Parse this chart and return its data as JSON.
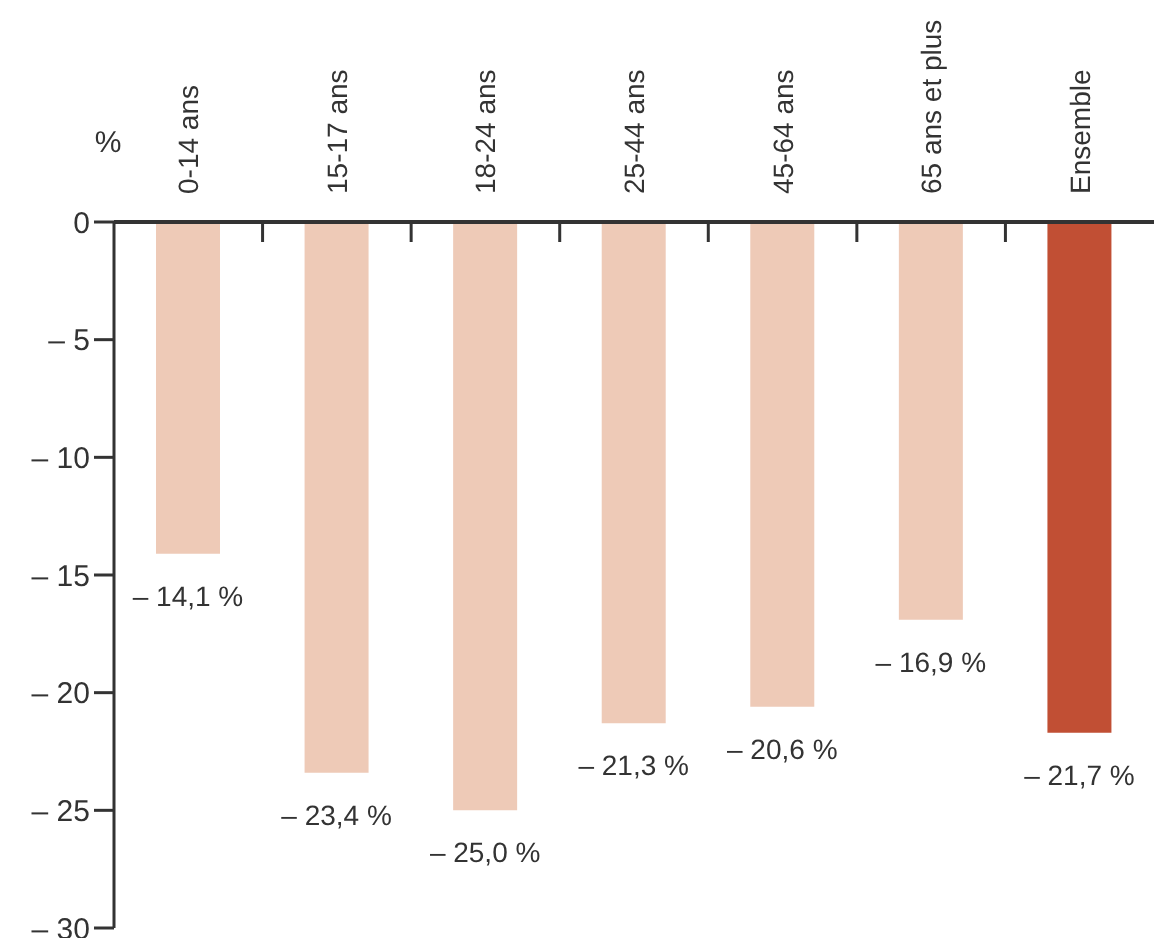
{
  "chart_data": {
    "type": "bar",
    "ylabel": "%",
    "categories": [
      "0-14 ans",
      "15-17 ans",
      "18-24 ans",
      "25-44 ans",
      "45-64 ans",
      "65 ans et plus",
      "Ensemble"
    ],
    "values": [
      -14.1,
      -23.4,
      -25.0,
      -21.3,
      -20.6,
      -16.9,
      -21.7
    ],
    "colors": [
      "#eecab7",
      "#eecab7",
      "#eecab7",
      "#eecab7",
      "#eecab7",
      "#eecab7",
      "#c14f34"
    ],
    "value_labels": [
      "– 14,1 %",
      "– 23,4 %",
      "– 25,0 %",
      "– 21,3 %",
      "– 20,6 %",
      "– 16,9 %",
      "– 21,7 %"
    ],
    "ylim": [
      -30,
      0
    ],
    "yticks": [
      0,
      {
        "value": -5,
        "label": "– 5"
      },
      {
        "value": -10,
        "label": "– 10"
      },
      {
        "value": -15,
        "label": "– 15"
      },
      {
        "value": -20,
        "label": "– 20"
      },
      {
        "value": -25,
        "label": "– 25"
      },
      {
        "value": -30,
        "label": "– 30"
      }
    ]
  }
}
